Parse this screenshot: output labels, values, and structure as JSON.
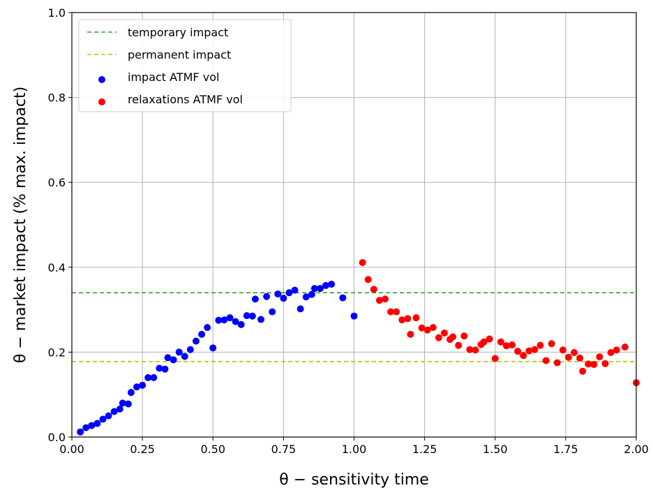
{
  "chart_data": {
    "type": "scatter",
    "xlabel": "θ − sensitivity time",
    "ylabel": "θ − market impact (% max. impact)",
    "xlim": [
      0.0,
      2.0
    ],
    "ylim": [
      0.0,
      1.0
    ],
    "xticks": [
      "0.00",
      "0.25",
      "0.50",
      "0.75",
      "1.00",
      "1.25",
      "1.50",
      "1.75",
      "2.00"
    ],
    "yticks": [
      "0.0",
      "0.2",
      "0.4",
      "0.6",
      "0.8",
      "1.0"
    ],
    "grid": true,
    "legend_position": "top-left",
    "reference_lines": [
      {
        "name": "temporary impact",
        "y": 0.34,
        "color": "#2ca02c",
        "style": "dashed"
      },
      {
        "name": "permanent impact",
        "y": 0.178,
        "color": "#bfbf00",
        "style": "dashed"
      }
    ],
    "series": [
      {
        "name": "impact ATMF vol",
        "color": "#0000ff",
        "points": [
          [
            0.03,
            0.012
          ],
          [
            0.05,
            0.022
          ],
          [
            0.07,
            0.027
          ],
          [
            0.09,
            0.032
          ],
          [
            0.11,
            0.042
          ],
          [
            0.13,
            0.05
          ],
          [
            0.15,
            0.06
          ],
          [
            0.17,
            0.066
          ],
          [
            0.18,
            0.08
          ],
          [
            0.2,
            0.078
          ],
          [
            0.21,
            0.105
          ],
          [
            0.23,
            0.118
          ],
          [
            0.25,
            0.122
          ],
          [
            0.27,
            0.14
          ],
          [
            0.29,
            0.14
          ],
          [
            0.31,
            0.162
          ],
          [
            0.33,
            0.16
          ],
          [
            0.34,
            0.187
          ],
          [
            0.36,
            0.182
          ],
          [
            0.38,
            0.2
          ],
          [
            0.4,
            0.19
          ],
          [
            0.42,
            0.206
          ],
          [
            0.44,
            0.226
          ],
          [
            0.46,
            0.242
          ],
          [
            0.48,
            0.258
          ],
          [
            0.5,
            0.21
          ],
          [
            0.52,
            0.275
          ],
          [
            0.54,
            0.276
          ],
          [
            0.56,
            0.281
          ],
          [
            0.58,
            0.272
          ],
          [
            0.6,
            0.265
          ],
          [
            0.62,
            0.286
          ],
          [
            0.64,
            0.285
          ],
          [
            0.65,
            0.325
          ],
          [
            0.67,
            0.277
          ],
          [
            0.69,
            0.331
          ],
          [
            0.71,
            0.295
          ],
          [
            0.73,
            0.337
          ],
          [
            0.75,
            0.327
          ],
          [
            0.77,
            0.34
          ],
          [
            0.79,
            0.346
          ],
          [
            0.81,
            0.302
          ],
          [
            0.83,
            0.33
          ],
          [
            0.85,
            0.336
          ],
          [
            0.86,
            0.35
          ],
          [
            0.88,
            0.35
          ],
          [
            0.9,
            0.357
          ],
          [
            0.92,
            0.36
          ],
          [
            0.96,
            0.328
          ],
          [
            1.0,
            0.285
          ]
        ]
      },
      {
        "name": "relaxations ATMF vol",
        "color": "#ff0000",
        "points": [
          [
            1.03,
            0.411
          ],
          [
            1.05,
            0.371
          ],
          [
            1.07,
            0.348
          ],
          [
            1.09,
            0.322
          ],
          [
            1.11,
            0.325
          ],
          [
            1.13,
            0.295
          ],
          [
            1.15,
            0.295
          ],
          [
            1.17,
            0.276
          ],
          [
            1.19,
            0.279
          ],
          [
            1.2,
            0.242
          ],
          [
            1.22,
            0.281
          ],
          [
            1.24,
            0.257
          ],
          [
            1.26,
            0.252
          ],
          [
            1.28,
            0.258
          ],
          [
            1.3,
            0.234
          ],
          [
            1.32,
            0.245
          ],
          [
            1.34,
            0.23
          ],
          [
            1.35,
            0.236
          ],
          [
            1.37,
            0.216
          ],
          [
            1.39,
            0.238
          ],
          [
            1.41,
            0.206
          ],
          [
            1.43,
            0.205
          ],
          [
            1.45,
            0.218
          ],
          [
            1.46,
            0.224
          ],
          [
            1.48,
            0.231
          ],
          [
            1.5,
            0.185
          ],
          [
            1.52,
            0.224
          ],
          [
            1.54,
            0.215
          ],
          [
            1.56,
            0.217
          ],
          [
            1.58,
            0.202
          ],
          [
            1.6,
            0.192
          ],
          [
            1.62,
            0.203
          ],
          [
            1.64,
            0.206
          ],
          [
            1.66,
            0.216
          ],
          [
            1.68,
            0.18
          ],
          [
            1.7,
            0.22
          ],
          [
            1.72,
            0.175
          ],
          [
            1.74,
            0.205
          ],
          [
            1.76,
            0.188
          ],
          [
            1.78,
            0.199
          ],
          [
            1.8,
            0.186
          ],
          [
            1.81,
            0.155
          ],
          [
            1.83,
            0.172
          ],
          [
            1.85,
            0.171
          ],
          [
            1.87,
            0.189
          ],
          [
            1.89,
            0.173
          ],
          [
            1.91,
            0.199
          ],
          [
            1.93,
            0.205
          ],
          [
            1.96,
            0.212
          ],
          [
            2.0,
            0.128
          ]
        ]
      }
    ]
  }
}
